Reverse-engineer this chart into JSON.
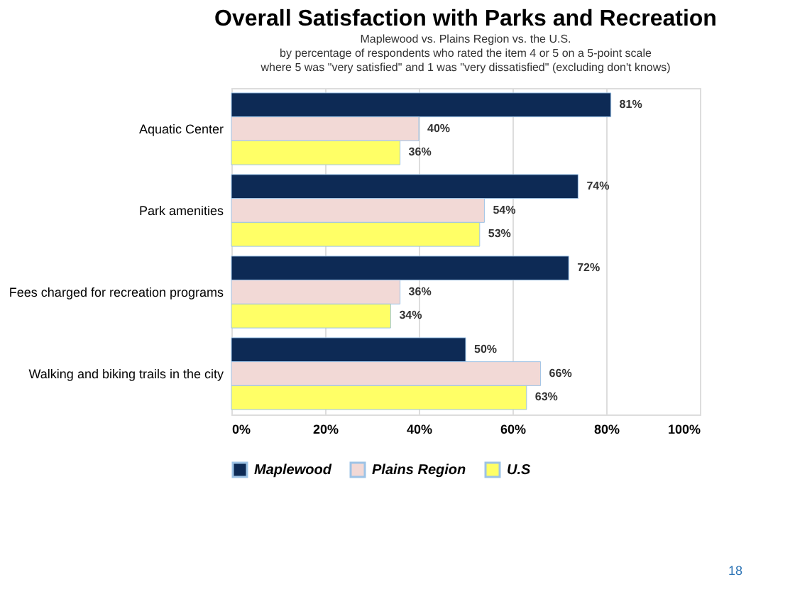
{
  "chart_data": {
    "type": "bar",
    "orientation": "horizontal",
    "title": "Overall Satisfaction with Parks and Recreation",
    "subtitle": "Maplewood vs. Plains Region vs. the U.S.\nby percentage of respondents who rated the item 4 or 5 on a 5-point scale\nwhere 5 was \"very satisfied\" and 1 was \"very dissatisfied\" (excluding don't knows)",
    "categories": [
      "Aquatic Center",
      "Park amenities",
      "Fees charged for recreation programs",
      "Walking and biking trails in the city"
    ],
    "series": [
      {
        "name": "Maplewood",
        "color": "#0d2a55",
        "values": [
          81,
          74,
          72,
          50
        ],
        "value_labels": [
          "81%",
          "74%",
          "72%",
          "50%"
        ]
      },
      {
        "name": "Plains Region",
        "color": "#f2d9d6",
        "values": [
          40,
          54,
          36,
          66
        ],
        "value_labels": [
          "40%",
          "54%",
          "36%",
          "66%"
        ]
      },
      {
        "name": "U.S",
        "color": "#ffff66",
        "values": [
          36,
          53,
          34,
          63
        ],
        "value_labels": [
          "36%",
          "53%",
          "34%",
          "63%"
        ]
      }
    ],
    "xlim": [
      0,
      100
    ],
    "xticks": [
      {
        "value": 0,
        "label": "0%"
      },
      {
        "value": 20,
        "label": "20%"
      },
      {
        "value": 40,
        "label": "40%"
      },
      {
        "value": 60,
        "label": "60%"
      },
      {
        "value": 80,
        "label": "80%"
      },
      {
        "value": 100,
        "label": "100%"
      }
    ],
    "grid": "x",
    "legend": "bottom",
    "annotations": [
      "18"
    ]
  }
}
